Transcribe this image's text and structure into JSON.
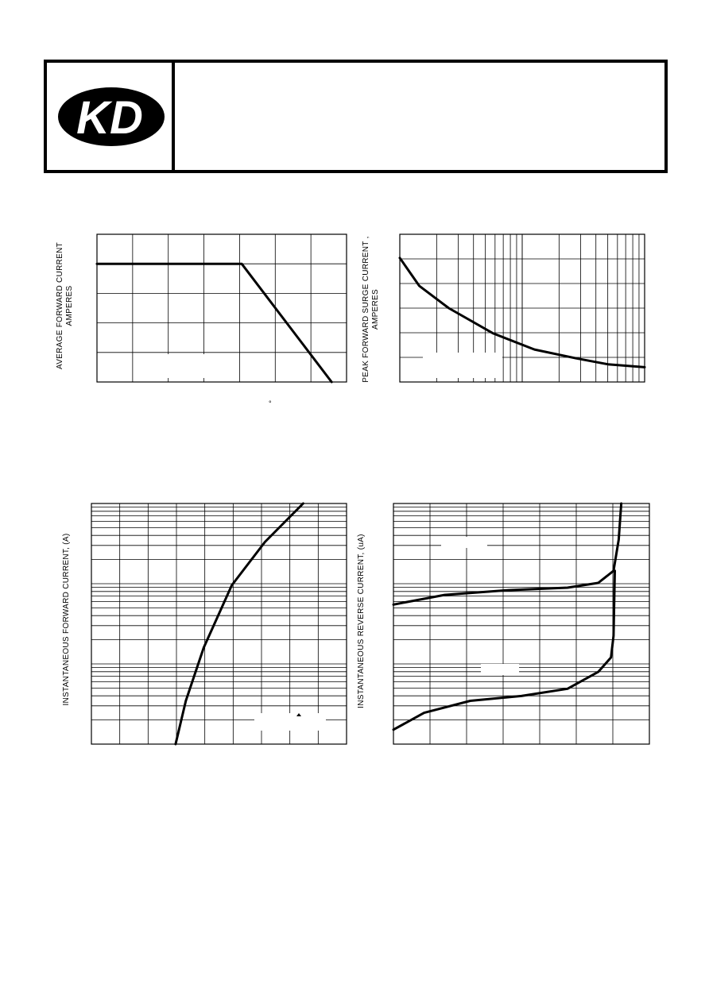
{
  "brand": {
    "logo_text": "KD"
  },
  "charts": [
    {
      "id": "derating",
      "type": "line",
      "ylabel_line1": "AVERAGE FORWARD CURRENT",
      "ylabel_line2": "AMPERES",
      "xlabel": "°",
      "grid": true,
      "x_divisions": 7,
      "y_divisions": 5,
      "series": [
        {
          "values_norm": [
            [
              0,
              0.8
            ],
            [
              0.58,
              0.8
            ],
            [
              0.94,
              0.0
            ]
          ]
        }
      ]
    },
    {
      "id": "surge",
      "type": "line",
      "ylabel_line1": "PEAK FORWARD SURGE CURRENT  ,",
      "ylabel_line2": "AMPERES",
      "x_scale": "log",
      "grid": true,
      "series": [
        {
          "values_norm": [
            [
              0,
              0.84
            ],
            [
              0.08,
              0.65
            ],
            [
              0.2,
              0.5
            ],
            [
              0.38,
              0.33
            ],
            [
              0.55,
              0.22
            ],
            [
              0.72,
              0.16
            ],
            [
              0.85,
              0.12
            ],
            [
              1.0,
              0.1
            ]
          ]
        }
      ]
    },
    {
      "id": "forward",
      "type": "line",
      "ylabel": "INSTANTANEOUS  FORWARD CURRENT, (A)",
      "y_scale": "log",
      "grid": true,
      "series": [
        {
          "values_norm": [
            [
              0.33,
              0.0
            ],
            [
              0.37,
              0.18
            ],
            [
              0.44,
              0.4
            ],
            [
              0.55,
              0.66
            ],
            [
              0.68,
              0.84
            ],
            [
              0.83,
              1.0
            ]
          ]
        }
      ]
    },
    {
      "id": "reverse",
      "type": "line",
      "ylabel": "INSTANTANEOUS REVERSE CURRENT, (uA)",
      "y_scale": "log",
      "label_upper": "°",
      "label_lower": "°",
      "grid": true,
      "series": [
        {
          "values_norm": [
            [
              0,
              0.58
            ],
            [
              0.2,
              0.62
            ],
            [
              0.45,
              0.64
            ],
            [
              0.68,
              0.65
            ],
            [
              0.8,
              0.67
            ],
            [
              0.86,
              0.72
            ],
            [
              0.88,
              0.85
            ],
            [
              0.89,
              1.0
            ]
          ]
        },
        {
          "values_norm": [
            [
              0,
              0.06
            ],
            [
              0.12,
              0.13
            ],
            [
              0.3,
              0.18
            ],
            [
              0.5,
              0.2
            ],
            [
              0.68,
              0.23
            ],
            [
              0.8,
              0.3
            ],
            [
              0.85,
              0.36
            ],
            [
              0.86,
              0.45
            ],
            [
              0.865,
              0.72
            ]
          ]
        }
      ]
    }
  ]
}
